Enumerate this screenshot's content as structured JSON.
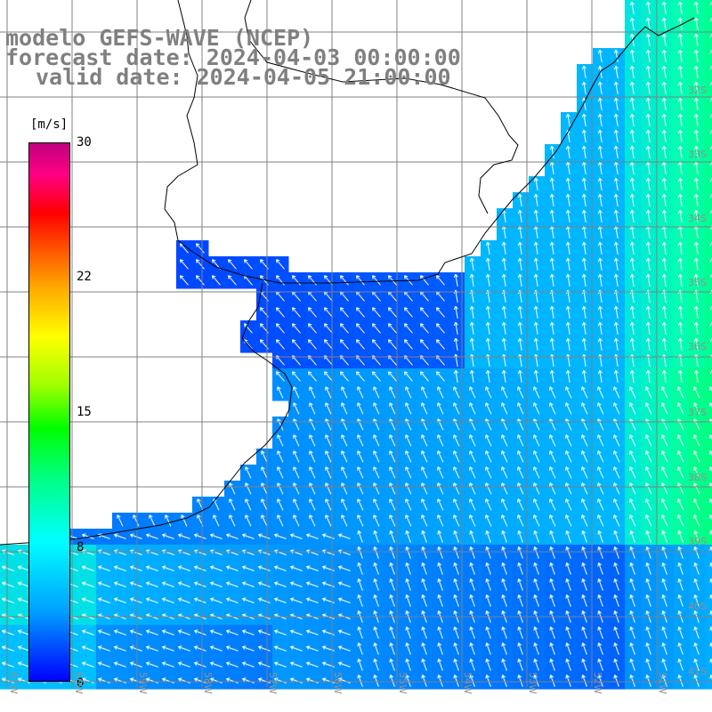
{
  "header": {
    "line1": "modelo GEFS-WAVE (NCEP)",
    "line2": "forecast date: 2024-04-03 00:00:00",
    "line3": "valid date: 2024-04-05 21:00:00"
  },
  "legend": {
    "unit": "[m/s]",
    "ticks": [
      {
        "label": "30",
        "value": 30
      },
      {
        "label": "22",
        "value": 22
      },
      {
        "label": "15",
        "value": 15
      },
      {
        "label": "8",
        "value": 8
      },
      {
        "label": "0",
        "value": 0
      }
    ],
    "colors": [
      "#0000ff",
      "#00a0ff",
      "#00ffff",
      "#00ff80",
      "#00ff00",
      "#ffff00",
      "#ff0000",
      "#c00080"
    ]
  },
  "lat_labels": [
    "32S",
    "33S",
    "34S",
    "35S",
    "36S",
    "37S",
    "38S",
    "39S",
    "40S",
    "41S"
  ],
  "lon_labels": [
    "61W",
    "60W",
    "59W",
    "58W",
    "57W",
    "56W",
    "55W",
    "54W",
    "53W",
    "52W",
    "51W"
  ],
  "colors": {
    "land": "#ffffff",
    "coast": "#000000",
    "grid": "#808080",
    "arrows": "#ffffff",
    "title": "#808080",
    "lat_lon_labels": "#909090"
  }
}
